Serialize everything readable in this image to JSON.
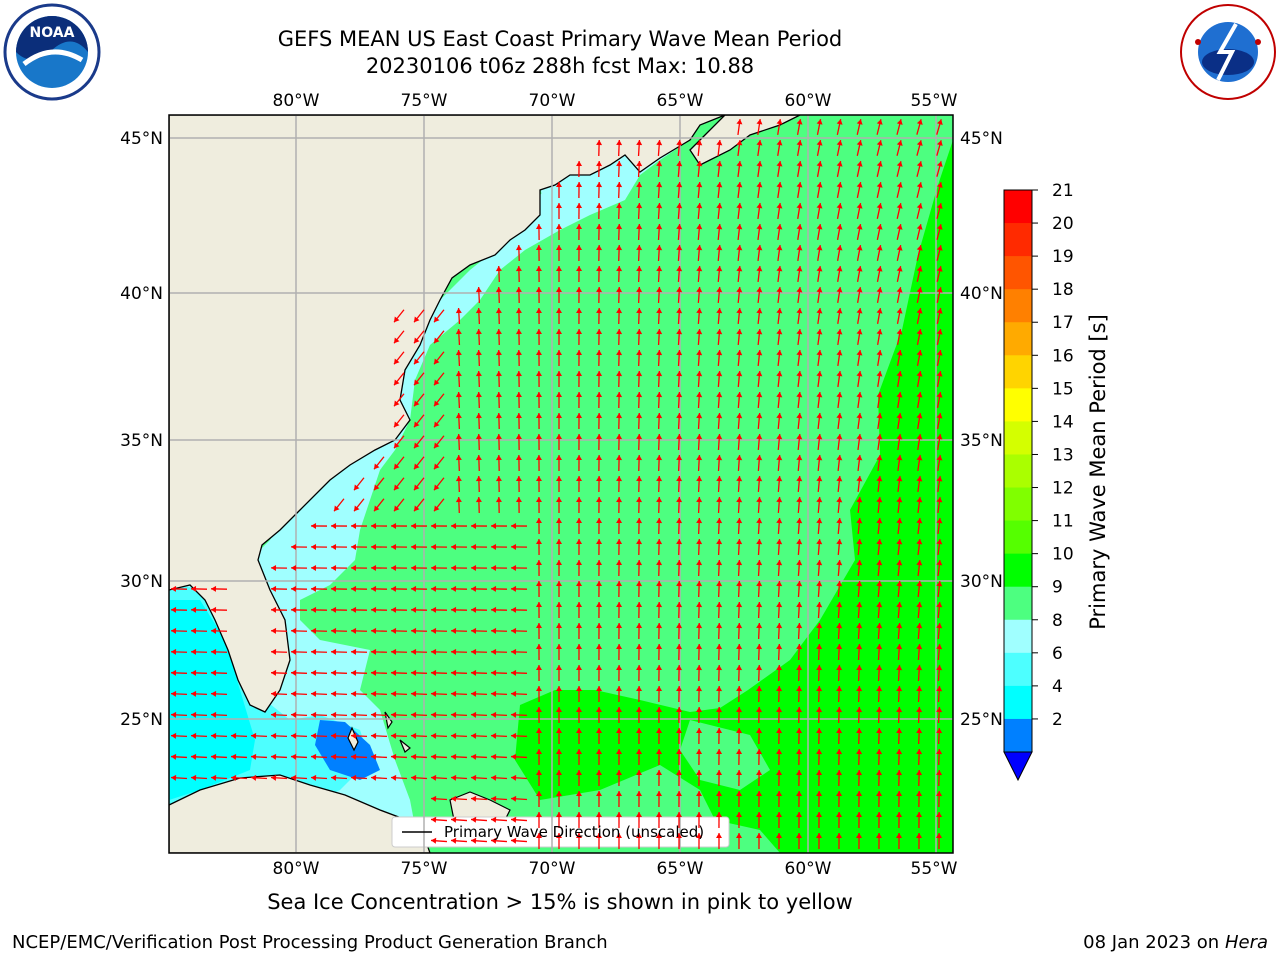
{
  "header": {
    "title_line1": "GEFS MEAN US East Coast Primary Wave Mean Period",
    "title_line2": "20230106 t06z 288h fcst   Max: 10.88"
  },
  "logos": {
    "left": "noaa-logo",
    "right": "national-weather-service-logo"
  },
  "map": {
    "lon_labels": [
      "80°W",
      "75°W",
      "70°W",
      "65°W",
      "60°W",
      "55°W"
    ],
    "lat_labels": [
      "45°N",
      "40°N",
      "35°N",
      "30°N",
      "25°N"
    ],
    "legend_label": "Primary Wave Direction (unscaled)",
    "colors": {
      "land": "#efedde",
      "arrow": "#ff0000",
      "grid": "#b0b0b0"
    }
  },
  "colorbar": {
    "label": "Primary Wave Mean Period [s]",
    "ticks": [
      "21",
      "20",
      "19",
      "18",
      "17",
      "16",
      "15",
      "14",
      "13",
      "12",
      "11",
      "10",
      "9",
      "8",
      "6",
      "4",
      "2"
    ],
    "colors": [
      "#ff0000",
      "#ff2a00",
      "#ff5500",
      "#ff8000",
      "#ffaa00",
      "#ffd400",
      "#ffff00",
      "#d4ff00",
      "#aaff00",
      "#80ff00",
      "#55ff00",
      "#00ff00",
      "#4dff80",
      "#a0ffff",
      "#4dffff",
      "#00ffff",
      "#0080ff"
    ],
    "extend_color": "#0000ff"
  },
  "footer": {
    "note": "Sea Ice Concentration > 15% is shown in pink to yellow",
    "credit_left": "NCEP/EMC/Verification Post Processing Product Generation Branch",
    "credit_date": "08 Jan 2023 on ",
    "credit_host": "Hera"
  }
}
